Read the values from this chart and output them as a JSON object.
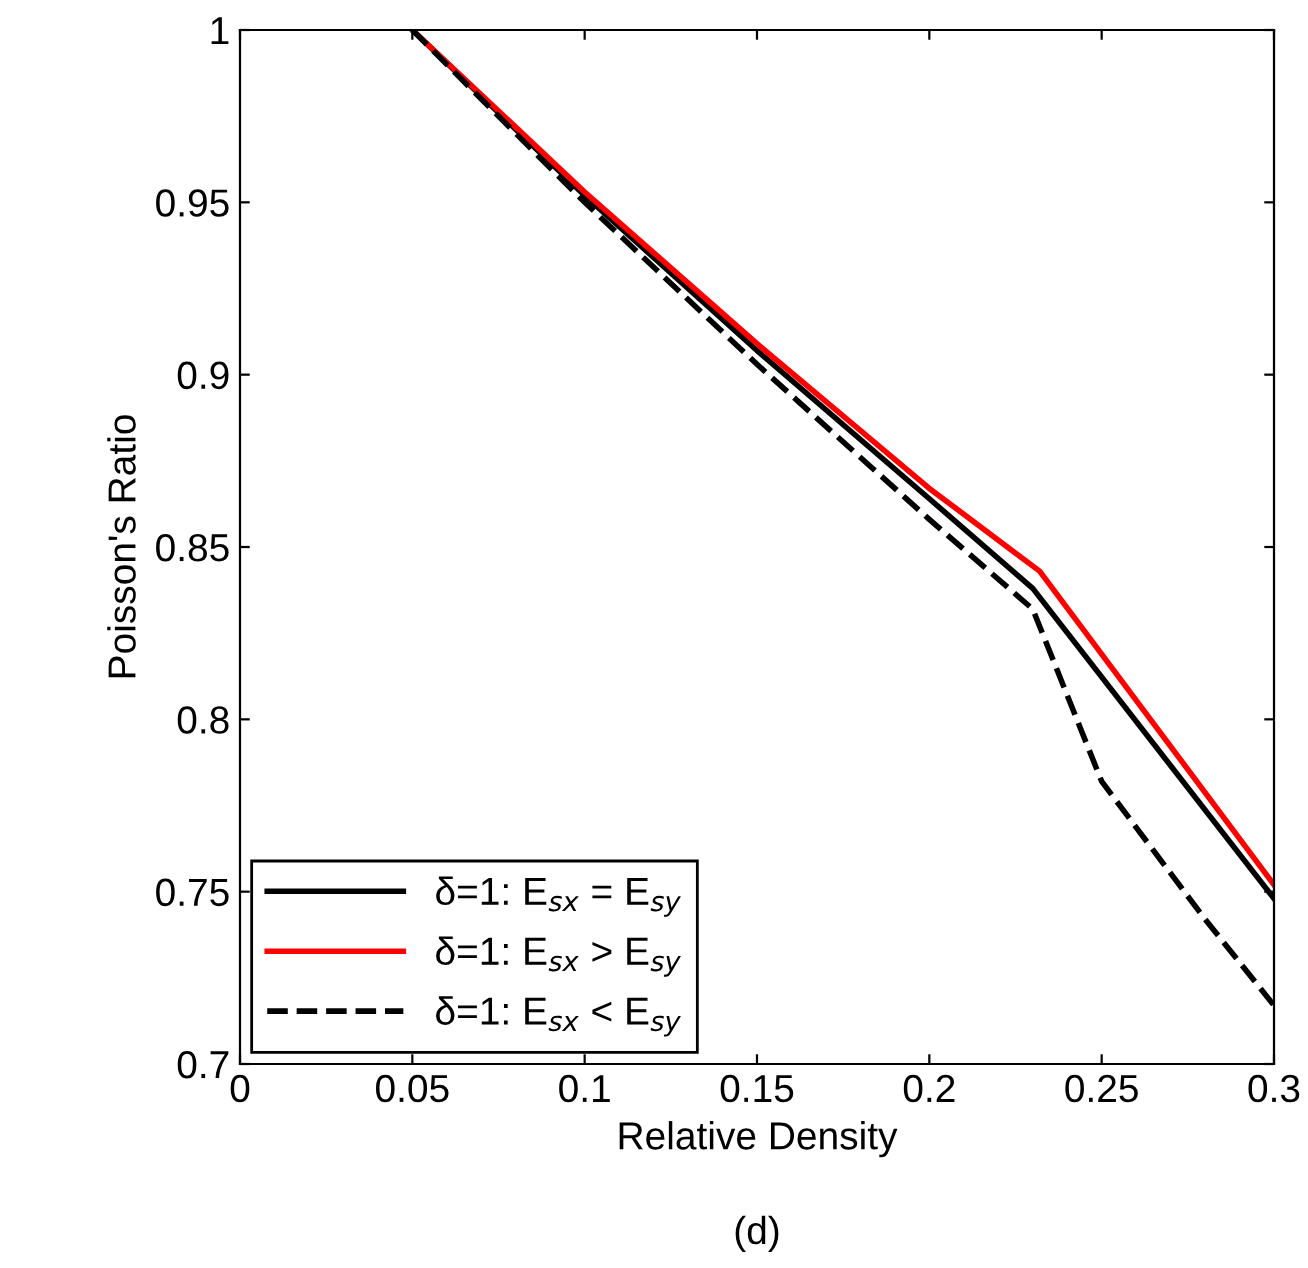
{
  "chart_data": {
    "type": "line",
    "xlabel": "Relative Density",
    "ylabel": "Poisson's Ratio",
    "annotations": [
      "(d)"
    ],
    "xlim": [
      0,
      0.3
    ],
    "ylim": [
      0.7,
      1
    ],
    "xticks": [
      0,
      0.05,
      0.1,
      0.15,
      0.2,
      0.25,
      0.3
    ],
    "yticks": [
      0.7,
      0.75,
      0.8,
      0.85,
      0.9,
      0.95,
      1
    ],
    "grid": false,
    "legend": "bottom left",
    "series": [
      {
        "name": "δ=1: E$_{sx}$ = E$_{sy}$",
        "color": "#000000",
        "line_style": "solid",
        "x": [
          0.05,
          0.1,
          0.15,
          0.2,
          0.23,
          0.3
        ],
        "values": [
          1.0,
          0.952,
          0.907,
          0.864,
          0.838,
          0.748
        ]
      },
      {
        "name": "δ=1: E$_{sx}$ > E$_{sy}$",
        "color": "#ff0000",
        "line_style": "solid",
        "x": [
          0.05,
          0.1,
          0.15,
          0.2,
          0.232,
          0.3
        ],
        "values": [
          1.0,
          0.953,
          0.909,
          0.867,
          0.843,
          0.752
        ]
      },
      {
        "name": "δ=1: E$_{sx}$ < E$_{sy}$",
        "color": "#000000",
        "line_style": "dashed",
        "x": [
          0.05,
          0.1,
          0.15,
          0.2,
          0.23,
          0.25,
          0.28,
          0.3
        ],
        "values": [
          1.0,
          0.95,
          0.903,
          0.858,
          0.832,
          0.782,
          0.742,
          0.717
        ]
      }
    ]
  }
}
